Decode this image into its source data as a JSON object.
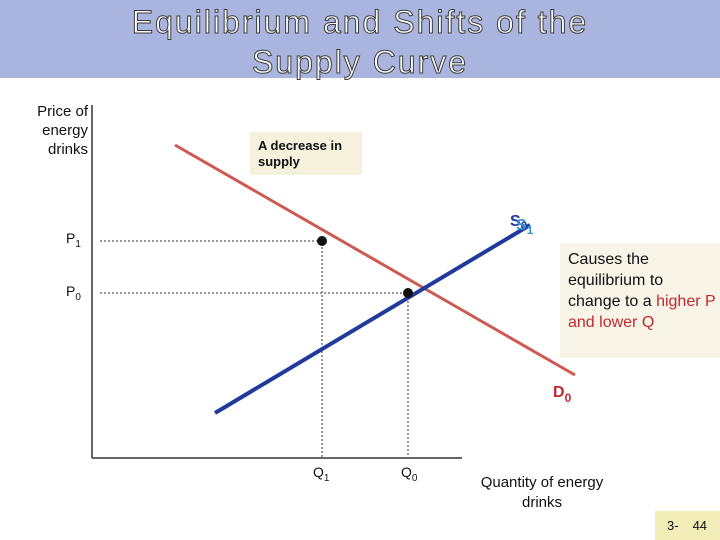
{
  "header": {
    "title": "Equilibrium and Shifts of the Supply Curve"
  },
  "diagram": {
    "y_axis_label": "Price of energy drinks",
    "x_axis_label": "Quantity of energy drinks",
    "callout": "A decrease in supply",
    "supply_labels": [
      {
        "main": "S",
        "sub": "0"
      },
      {
        "main": "S",
        "sub": "1"
      }
    ],
    "demand_label": {
      "main": "D",
      "sub": "0"
    },
    "price_labels": [
      {
        "main": "P",
        "sub": "1"
      },
      {
        "main": "P",
        "sub": "0"
      }
    ],
    "quantity_labels": [
      {
        "main": "Q",
        "sub": "1"
      },
      {
        "main": "Q",
        "sub": "0"
      }
    ],
    "note": {
      "text": "Causes the equilibrium to change to a",
      "highlight": "higher P and lower Q"
    }
  },
  "footer": {
    "chapter": "3-",
    "page": "44"
  }
}
